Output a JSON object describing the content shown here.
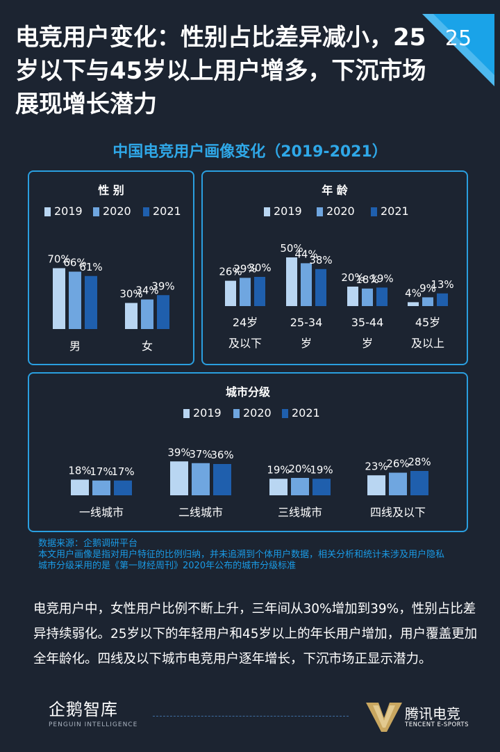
{
  "headline": "电竞用户变化：性别占比差异减小，25岁以下与45岁以上用户增多，下沉市场展现增长潜力",
  "page_number": "25",
  "infographic_title": "中国电竞用户画像变化（2019-2021）",
  "legend_years": [
    "2019",
    "2020",
    "2021"
  ],
  "colors": {
    "y2019": "#b9d6f2",
    "y2020": "#6fa6e0",
    "y2021": "#1f5fad",
    "panel_border": "#2a9fe0",
    "accent": "#2fa8e8"
  },
  "chart_data": [
    {
      "type": "bar",
      "title": "性 别",
      "categories": [
        [
          "男"
        ],
        [
          "女"
        ]
      ],
      "series": [
        {
          "name": "2019",
          "values": [
            70,
            30
          ]
        },
        {
          "name": "2020",
          "values": [
            66,
            34
          ]
        },
        {
          "name": "2021",
          "values": [
            61,
            39
          ]
        }
      ],
      "value_suffix": "%",
      "ylim": [
        0,
        100
      ],
      "legend_position": "top"
    },
    {
      "type": "bar",
      "title": "年 龄",
      "categories": [
        [
          "24岁",
          "及以下"
        ],
        [
          "25-34",
          "岁"
        ],
        [
          "35-44",
          "岁"
        ],
        [
          "45岁",
          "及以上"
        ]
      ],
      "series": [
        {
          "name": "2019",
          "values": [
            26,
            50,
            20,
            4
          ]
        },
        {
          "name": "2020",
          "values": [
            29,
            44,
            18,
            9
          ]
        },
        {
          "name": "2021",
          "values": [
            30,
            38,
            19,
            13
          ]
        }
      ],
      "value_suffix": "%",
      "ylim": [
        0,
        100
      ],
      "legend_position": "top"
    },
    {
      "type": "bar",
      "title": "城市分级",
      "categories": [
        [
          "一线城市"
        ],
        [
          "二线城市"
        ],
        [
          "三线城市"
        ],
        [
          "四线及以下"
        ]
      ],
      "series": [
        {
          "name": "2019",
          "values": [
            18,
            39,
            19,
            23
          ]
        },
        {
          "name": "2020",
          "values": [
            17,
            37,
            20,
            26
          ]
        },
        {
          "name": "2021",
          "values": [
            17,
            36,
            19,
            28
          ]
        }
      ],
      "value_suffix": "%",
      "ylim": [
        0,
        100
      ],
      "legend_position": "top"
    }
  ],
  "notes": [
    "数据来源：企鹅调研平台",
    "本文用户画像是指对用户特征的比例归纳，并未追溯到个体用户数据，相关分析和统计未涉及用户隐私",
    "城市分级采用的是《第一财经周刊》2020年公布的城市分级标准"
  ],
  "summary": "电竞用户中，女性用户比例不断上升，三年间从30%增加到39%，性别占比差异持续弱化。25岁以下的年轻用户和45岁以上的年长用户增加，用户覆盖更加全年龄化。四线及以下城市电竞用户逐年增长，下沉市场正显示潜力。",
  "footer": {
    "left_logo_cn": "企鹅智库",
    "left_logo_en": "PENGUIN INTELLIGENCE",
    "right_logo_cn": "腾讯电竞",
    "right_logo_en": "TENCENT E-SPORTS",
    "right_logo_icon": "tencent-esports-v-icon"
  }
}
